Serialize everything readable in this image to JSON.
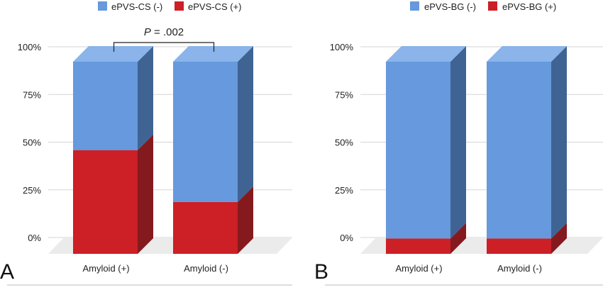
{
  "colors": {
    "neg": "#6699dd",
    "neg_top": "#8ab4ea",
    "neg_side": "#3f6494",
    "pos": "#cc1f26",
    "pos_top": "#e0484e",
    "pos_side": "#851a1e",
    "grid": "#d6d6d6",
    "floor": "#ebebeb",
    "text": "#222222"
  },
  "chart_data": [
    {
      "type": "bar",
      "stacked": true,
      "panel_label": "A",
      "categories": [
        "Amyloid (+)",
        "Amyloid (-)"
      ],
      "series": [
        {
          "name": "ePVS-CS (-)",
          "color_key": "neg",
          "values": [
            46,
            73
          ]
        },
        {
          "name": "ePVS-CS (+)",
          "color_key": "pos",
          "values": [
            54,
            27
          ]
        }
      ],
      "yticks": [
        "0%",
        "25%",
        "50%",
        "75%",
        "100%"
      ],
      "ylim": [
        0,
        100
      ],
      "legend_position": "top",
      "annotation": {
        "italic": "P",
        "text": " = .002"
      },
      "grid": true
    },
    {
      "type": "bar",
      "stacked": true,
      "panel_label": "B",
      "categories": [
        "Amyloid (+)",
        "Amyloid (-)"
      ],
      "series": [
        {
          "name": "ePVS-BG (-)",
          "color_key": "neg",
          "values": [
            92,
            92
          ]
        },
        {
          "name": "ePVS-BG (+)",
          "color_key": "pos",
          "values": [
            8,
            8
          ]
        }
      ],
      "yticks": [
        "0%",
        "25%",
        "50%",
        "75%",
        "100%"
      ],
      "ylim": [
        0,
        100
      ],
      "legend_position": "top",
      "grid": true
    }
  ]
}
